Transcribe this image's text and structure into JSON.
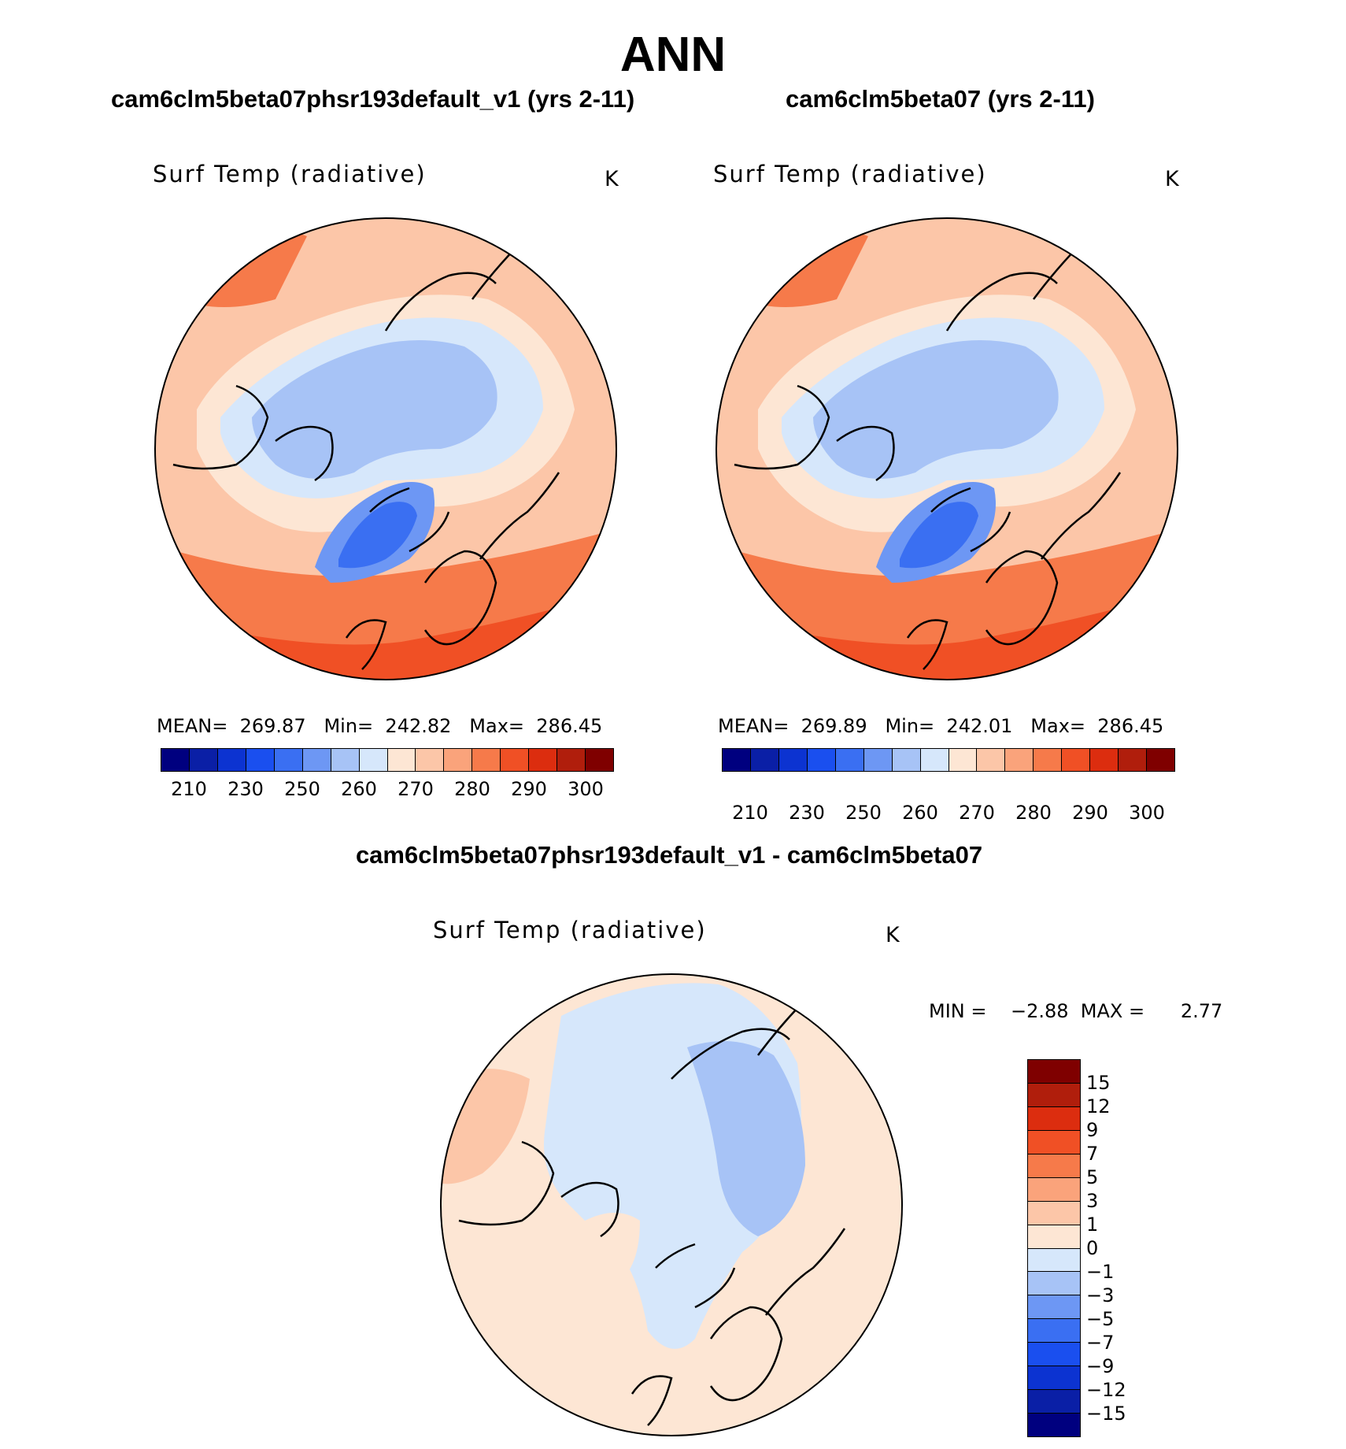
{
  "figure": {
    "title": "ANN",
    "diff_title": "cam6clm5beta07phsr193default_v1 - cam6clm5beta07"
  },
  "panels": [
    {
      "case_title": "cam6clm5beta07phsr193default_v1 (yrs 2-11)",
      "variable": "Surf Temp (radiative)",
      "units": "K",
      "stats_text": "MEAN=  269.87   Min=  242.82   Max=  286.45"
    },
    {
      "case_title": "cam6clm5beta07 (yrs 2-11)",
      "variable": "Surf Temp (radiative)",
      "units": "K",
      "stats_text": "MEAN=  269.89   Min=  242.01   Max=  286.45"
    }
  ],
  "diff_panel": {
    "variable": "Surf Temp (radiative)",
    "units": "K",
    "minmax_text": "MIN =    −2.88  MAX =      2.77"
  },
  "colors": {
    "abs_bins": [
      "#00007f",
      "#0a1fa6",
      "#0c33d1",
      "#1a4fef",
      "#3a6ff2",
      "#6d97f4",
      "#a7c3f6",
      "#d6e7fb",
      "#fde6d4",
      "#fcc6a8",
      "#faa37b",
      "#f67a4a",
      "#f05025",
      "#dc2d0f",
      "#b01e0c",
      "#7f0000"
    ],
    "diff_bins": [
      "#00007f",
      "#0a1fa6",
      "#0c33d1",
      "#1a4fef",
      "#3a6ff2",
      "#6d97f4",
      "#a7c3f6",
      "#d6e7fb",
      "#fde6d4",
      "#fcc6a8",
      "#faa37b",
      "#f67a4a",
      "#f05025",
      "#dc2d0f",
      "#b01e0c",
      "#7f0000"
    ]
  },
  "chart_data": [
    {
      "type": "heatmap",
      "projection": "north-polar-stereographic",
      "title": "cam6clm5beta07phsr193default_v1 (yrs 2-11)",
      "variable": "Surf Temp (radiative)",
      "units": "K",
      "mean": 269.87,
      "min": 242.82,
      "max": 286.45,
      "colorbar_levels": [
        210,
        220,
        230,
        240,
        250,
        255,
        260,
        265,
        270,
        275,
        280,
        285,
        290,
        295,
        300
      ],
      "colorbar_tick_labels": [
        "210",
        "230",
        "250",
        "260",
        "270",
        "280",
        "290",
        "300"
      ]
    },
    {
      "type": "heatmap",
      "projection": "north-polar-stereographic",
      "title": "cam6clm5beta07 (yrs 2-11)",
      "variable": "Surf Temp (radiative)",
      "units": "K",
      "mean": 269.89,
      "min": 242.01,
      "max": 286.45,
      "colorbar_levels": [
        210,
        220,
        230,
        240,
        250,
        255,
        260,
        265,
        270,
        275,
        280,
        285,
        290,
        295,
        300
      ],
      "colorbar_tick_labels": [
        "210",
        "230",
        "250",
        "260",
        "270",
        "280",
        "290",
        "300"
      ]
    },
    {
      "type": "heatmap",
      "projection": "north-polar-stereographic",
      "title": "cam6clm5beta07phsr193default_v1 - cam6clm5beta07",
      "variable": "Surf Temp (radiative)",
      "units": "K",
      "min": -2.88,
      "max": 2.77,
      "colorbar_tick_labels": [
        "15",
        "12",
        "9",
        "7",
        "5",
        "3",
        "1",
        "0",
        "−1",
        "−3",
        "−5",
        "−7",
        "−9",
        "−12",
        "−15"
      ]
    }
  ]
}
